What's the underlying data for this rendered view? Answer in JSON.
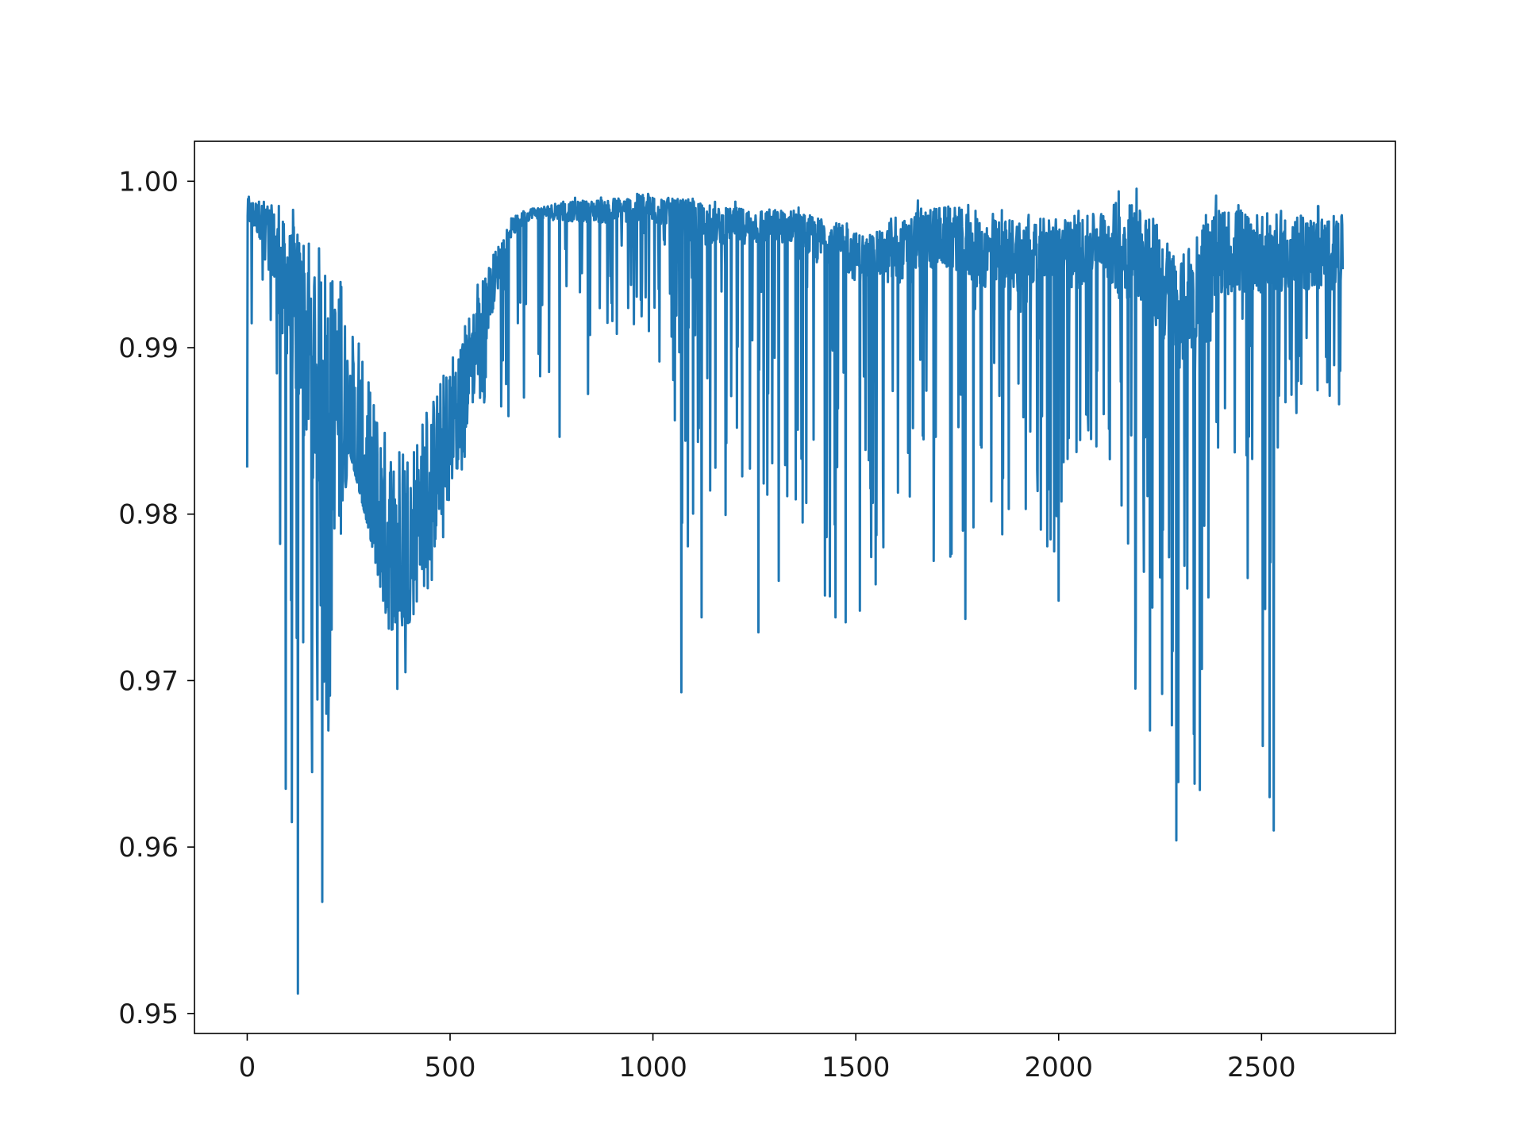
{
  "chart_data": {
    "type": "line",
    "title": "",
    "xlabel": "",
    "ylabel": "",
    "xlim": [
      -130,
      2830
    ],
    "ylim": [
      0.9488,
      1.0024
    ],
    "grid": false,
    "legend": "none",
    "x_ticks": [
      0,
      500,
      1000,
      1500,
      2000,
      2500
    ],
    "x_tick_labels": [
      "0",
      "500",
      "1000",
      "1500",
      "2000",
      "2500"
    ],
    "y_ticks": [
      0.95,
      0.96,
      0.97,
      0.98,
      0.99,
      1.0
    ],
    "y_tick_labels": [
      "0.95",
      "0.96",
      "0.97",
      "0.98",
      "0.99",
      "1.00"
    ],
    "series": [
      {
        "color": "#1f77b4",
        "x_range": [
          0,
          2700
        ],
        "x": [
          0,
          50,
          100,
          150,
          200,
          250,
          300,
          350,
          400,
          450,
          500,
          550,
          600,
          650,
          700,
          750,
          800,
          850,
          900,
          950,
          1000,
          1050,
          1100,
          1150,
          1200,
          1250,
          1300,
          1350,
          1400,
          1450,
          1500,
          1550,
          1600,
          1650,
          1700,
          1750,
          1800,
          1850,
          1900,
          1950,
          2000,
          2050,
          2100,
          2150,
          2200,
          2250,
          2300,
          2350,
          2400,
          2450,
          2500,
          2550,
          2600,
          2650,
          2700
        ],
        "upper_envelope": [
          0.9992,
          0.9994,
          0.9988,
          1.0,
          0.9982,
          0.9945,
          0.9905,
          0.987,
          0.9865,
          0.9885,
          0.991,
          0.9935,
          0.996,
          0.998,
          0.9985,
          0.9988,
          0.999,
          0.9991,
          0.9993,
          0.9995,
          0.9996,
          0.9992,
          0.9995,
          0.9988,
          0.9988,
          0.9988,
          0.9987,
          0.9986,
          0.9984,
          0.998,
          0.9975,
          0.9975,
          0.998,
          0.999,
          0.9992,
          0.9992,
          0.9985,
          0.9985,
          0.9988,
          0.9985,
          0.9988,
          0.9985,
          0.9988,
          1.0,
          1.0,
          0.9985,
          0.9965,
          0.999,
          0.9992,
          0.9994,
          0.999,
          0.9988,
          0.9988,
          0.9988,
          0.9988
        ],
        "baseline": [
          0.998,
          0.997,
          0.992,
          0.988,
          0.985,
          0.982,
          0.979,
          0.976,
          0.977,
          0.98,
          0.984,
          0.988,
          0.993,
          0.997,
          0.998,
          0.998,
          0.998,
          0.998,
          0.998,
          0.998,
          0.998,
          0.998,
          0.997,
          0.997,
          0.997,
          0.997,
          0.997,
          0.997,
          0.996,
          0.996,
          0.995,
          0.995,
          0.995,
          0.996,
          0.996,
          0.996,
          0.995,
          0.995,
          0.995,
          0.995,
          0.995,
          0.995,
          0.996,
          0.995,
          0.995,
          0.993,
          0.991,
          0.993,
          0.995,
          0.995,
          0.995,
          0.995,
          0.995,
          0.995,
          0.995
        ],
        "lower_envelope": [
          0.983,
          0.996,
          0.9635,
          0.9645,
          0.967,
          0.984,
          0.979,
          0.973,
          0.9735,
          0.9755,
          0.98,
          0.984,
          0.9875,
          0.9845,
          0.9845,
          0.989,
          0.978,
          0.9895,
          0.9905,
          0.9905,
          0.9905,
          0.9825,
          0.9755,
          0.9825,
          0.9735,
          0.9715,
          0.9715,
          0.9785,
          0.9745,
          0.9735,
          0.9735,
          0.9755,
          0.9755,
          0.9805,
          0.9755,
          0.974,
          0.9795,
          0.9775,
          0.9755,
          0.9795,
          0.9755,
          0.9835,
          0.9825,
          0.9765,
          0.9675,
          0.9745,
          0.9605,
          0.9635,
          0.9855,
          0.9825,
          0.961,
          0.9825,
          0.9865,
          0.987,
          0.9865
        ],
        "notable_dips": [
          {
            "x": 0,
            "y": 0.9828
          },
          {
            "x": 95,
            "y": 0.9635
          },
          {
            "x": 110,
            "y": 0.9615
          },
          {
            "x": 125,
            "y": 0.9512
          },
          {
            "x": 160,
            "y": 0.9645
          },
          {
            "x": 185,
            "y": 0.9567
          },
          {
            "x": 200,
            "y": 0.967
          },
          {
            "x": 370,
            "y": 0.9695
          },
          {
            "x": 390,
            "y": 0.9705
          },
          {
            "x": 1070,
            "y": 0.9693
          },
          {
            "x": 1120,
            "y": 0.9738
          },
          {
            "x": 1260,
            "y": 0.9729
          },
          {
            "x": 1450,
            "y": 0.9738
          },
          {
            "x": 1475,
            "y": 0.9735
          },
          {
            "x": 1510,
            "y": 0.9742
          },
          {
            "x": 1770,
            "y": 0.9737
          },
          {
            "x": 2000,
            "y": 0.9748
          },
          {
            "x": 2190,
            "y": 0.9732
          },
          {
            "x": 2225,
            "y": 0.967
          },
          {
            "x": 2255,
            "y": 0.9692
          },
          {
            "x": 2290,
            "y": 0.9604
          },
          {
            "x": 2335,
            "y": 0.9638
          },
          {
            "x": 2520,
            "y": 0.963
          },
          {
            "x": 2530,
            "y": 0.961
          }
        ]
      }
    ]
  }
}
